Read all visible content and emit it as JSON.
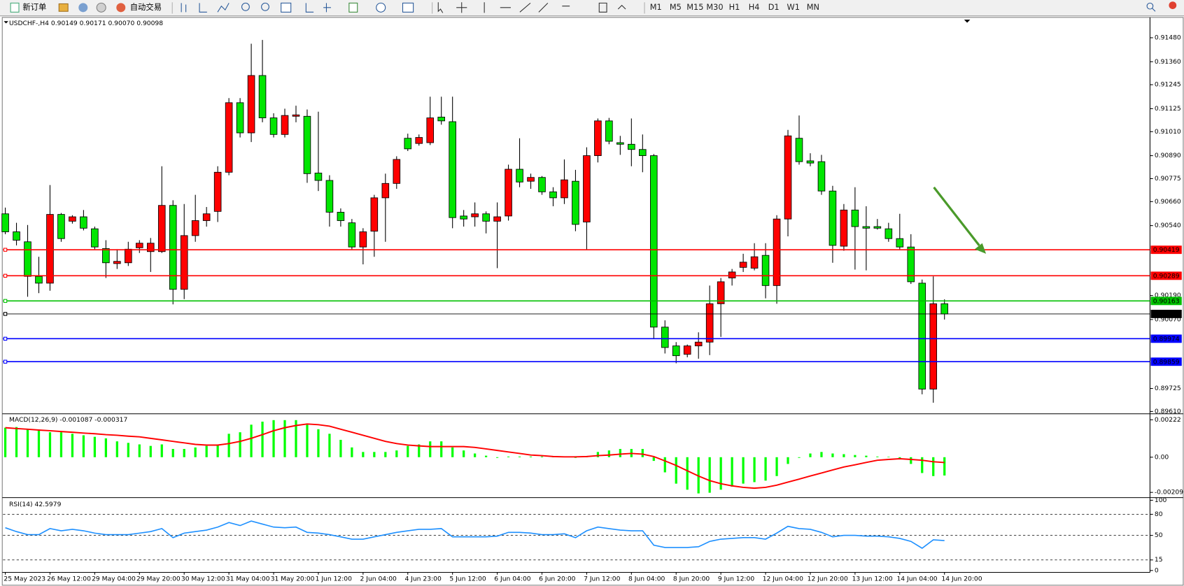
{
  "toolbar": {
    "buttons": [
      "新订单",
      "自动交易"
    ],
    "timeframes": [
      "M1",
      "M5",
      "M15",
      "M30",
      "H1",
      "H4",
      "D1",
      "W1",
      "MN"
    ]
  },
  "chart_data": [
    {
      "type": "candlestick",
      "title": "USDCHF-,H4  0.90149 0.90171 0.90070 0.90098",
      "up_color": "#ff0000",
      "down_color": "#00e600",
      "wick_color": "#000000",
      "grid": false,
      "ylim": [
        0.89602,
        0.91578
      ],
      "yticks": [
        {
          "value": 0.9148,
          "label": "0.91480"
        },
        {
          "value": 0.9136,
          "label": "0.91360"
        },
        0.91245,
        0.91125,
        {
          "value": 0.9101,
          "label": "0.91010"
        },
        {
          "value": 0.9089,
          "label": "0.90890"
        },
        0.90775,
        {
          "value": 0.9066,
          "label": "0.90660"
        },
        {
          "value": 0.9054,
          "label": "0.90540"
        },
        {
          "value": 0.9019,
          "label": "0.90190"
        },
        {
          "value": 0.9007,
          "label": "0.90070"
        },
        0.89725,
        {
          "value": 0.8961,
          "label": "0.89610"
        }
      ],
      "hlines": [
        {
          "value": 0.90419,
          "color": "#ff0000"
        },
        {
          "value": 0.90289,
          "color": "#ff0000"
        },
        {
          "value": 0.90163,
          "color": "#00c000"
        },
        {
          "value": 0.90098,
          "color": "#000000"
        },
        {
          "value": 0.89974,
          "color": "#0000ff"
        },
        {
          "value": 0.89859,
          "color": "#0000ff"
        }
      ],
      "categories": [
        "25 May 2023",
        null,
        null,
        null,
        "26 May 12:00",
        null,
        null,
        null,
        "29 May 04:00",
        null,
        null,
        null,
        "29 May 20:00",
        null,
        null,
        null,
        "30 May 12:00",
        null,
        null,
        null,
        "31 May 04:00",
        null,
        null,
        null,
        "31 May 20:00",
        null,
        null,
        null,
        "1 Jun 12:00",
        null,
        null,
        null,
        "2 Jun 04:00",
        null,
        null,
        null,
        "4 Jun 23:00",
        null,
        null,
        null,
        "5 Jun 12:00",
        null,
        null,
        null,
        "6 Jun 04:00",
        null,
        null,
        null,
        "6 Jun 20:00",
        null,
        null,
        null,
        "7 Jun 12:00",
        null,
        null,
        null,
        "8 Jun 04:00",
        null,
        null,
        null,
        "8 Jun 20:00",
        null,
        null,
        null,
        "9 Jun 12:00",
        null,
        null,
        null,
        "12 Jun 04:00",
        null,
        null,
        null,
        "12 Jun 20:00",
        null,
        null,
        null,
        "13 Jun 12:00",
        null,
        null,
        null,
        "14 Jun 04:00",
        null,
        null,
        null,
        "14 Jun 20:00"
      ],
      "open": [
        0.90599,
        0.90509,
        0.90459,
        0.90286,
        0.90252,
        0.90596,
        0.90562,
        0.90584,
        0.90524,
        0.90425,
        0.9035,
        0.90354,
        0.90429,
        0.9041,
        0.9041,
        0.90641,
        0.90221,
        0.9049,
        0.90565,
        0.90611,
        0.90807,
        0.91155,
        0.91004,
        0.91291,
        0.91079,
        0.90996,
        0.91087,
        0.91087,
        0.90803,
        0.90766,
        0.90607,
        0.90554,
        0.90433,
        0.90512,
        0.90679,
        0.90751,
        0.90977,
        0.90951,
        0.90955,
        0.91083,
        0.9106,
        0.90588,
        0.90584,
        0.90599,
        0.90562,
        0.90588,
        0.90822,
        0.90762,
        0.90781,
        0.90709,
        0.90679,
        0.90762,
        0.90558,
        0.9089,
        0.91064,
        0.90955,
        0.90947,
        0.90921,
        0.9089,
        0.90032,
        0.89938,
        0.89896,
        0.89938,
        0.89957,
        0.90149,
        0.90278,
        0.90331,
        0.90327,
        0.90391,
        0.9024,
        0.90573,
        0.90977,
        0.90864,
        0.9086,
        0.90713,
        0.90437,
        0.90618,
        0.90535,
        0.90535,
        0.90524,
        0.90475,
        0.90433,
        0.90252,
        0.89722,
        0.90149
      ],
      "high": [
        0.9063,
        0.90554,
        0.90543,
        0.90384,
        0.90743,
        0.90603,
        0.90592,
        0.90618,
        0.90535,
        0.90467,
        0.90422,
        0.90459,
        0.90467,
        0.90478,
        0.90837,
        0.90667,
        0.90648,
        0.90694,
        0.90633,
        0.90837,
        0.91178,
        0.91178,
        0.9145,
        0.91469,
        0.91102,
        0.91125,
        0.9114,
        0.91121,
        0.9111,
        0.90792,
        0.90626,
        0.90573,
        0.90527,
        0.90694,
        0.908,
        0.90887,
        0.91,
        0.90996,
        0.91185,
        0.91185,
        0.91185,
        0.90618,
        0.90656,
        0.90611,
        0.90656,
        0.90845,
        0.90977,
        0.908,
        0.90788,
        0.90732,
        0.90871,
        0.90819,
        0.90932,
        0.91076,
        0.91079,
        0.90989,
        0.91076,
        0.90996,
        0.90898,
        0.90066,
        0.89957,
        0.89945,
        0.90006,
        0.9024,
        0.90278,
        0.90323,
        0.90399,
        0.90452,
        0.90452,
        0.90592,
        0.91019,
        0.91091,
        0.90902,
        0.90894,
        0.90739,
        0.90648,
        0.90732,
        0.90637,
        0.90573,
        0.90554,
        0.90599,
        0.90497,
        0.9027,
        0.90286,
        0.90171
      ],
      "low": [
        0.90497,
        0.90441,
        0.90184,
        0.90202,
        0.90214,
        0.90459,
        0.9055,
        0.90516,
        0.90422,
        0.90278,
        0.90323,
        0.90338,
        0.90403,
        0.90308,
        0.90403,
        0.90146,
        0.90172,
        0.90459,
        0.90535,
        0.90558,
        0.90792,
        0.90981,
        0.90958,
        0.91057,
        0.90981,
        0.90981,
        0.91057,
        0.90754,
        0.90713,
        0.90535,
        0.90535,
        0.90422,
        0.90346,
        0.90384,
        0.90459,
        0.90724,
        0.90913,
        0.9094,
        0.90943,
        0.91045,
        0.90527,
        0.90535,
        0.90535,
        0.90501,
        0.90327,
        0.90565,
        0.90732,
        0.90724,
        0.90694,
        0.90637,
        0.90648,
        0.90512,
        0.90422,
        0.90856,
        0.90947,
        0.90894,
        0.90837,
        0.90807,
        0.89976,
        0.899,
        0.89851,
        0.89881,
        0.89874,
        0.89892,
        0.89983,
        0.9024,
        0.90308,
        0.90316,
        0.90176,
        0.90149,
        0.90486,
        0.90845,
        0.90837,
        0.90694,
        0.90354,
        0.90414,
        0.9032,
        0.90316,
        0.9052,
        0.90459,
        0.90422,
        0.90248,
        0.89696,
        0.89654,
        0.9007
      ],
      "close": [
        0.90509,
        0.90467,
        0.90286,
        0.90252,
        0.90596,
        0.90475,
        0.90584,
        0.90527,
        0.90433,
        0.90354,
        0.90361,
        0.90422,
        0.90452,
        0.90452,
        0.90641,
        0.90221,
        0.9049,
        0.90565,
        0.90599,
        0.90807,
        0.91155,
        0.91004,
        0.91291,
        0.91079,
        0.90996,
        0.91091,
        0.91094,
        0.908,
        0.90766,
        0.90607,
        0.90565,
        0.90433,
        0.90509,
        0.90679,
        0.90751,
        0.90871,
        0.90924,
        0.90981,
        0.91079,
        0.91064,
        0.9058,
        0.90573,
        0.90599,
        0.90562,
        0.90584,
        0.90822,
        0.90758,
        0.90781,
        0.90709,
        0.90679,
        0.90769,
        0.90546,
        0.9089,
        0.91064,
        0.90962,
        0.90947,
        0.90921,
        0.9089,
        0.90032,
        0.8993,
        0.89889,
        0.89938,
        0.89957,
        0.90149,
        0.90259,
        0.90308,
        0.90357,
        0.90384,
        0.9024,
        0.90573,
        0.90989,
        0.9086,
        0.90853,
        0.90713,
        0.90441,
        0.90618,
        0.90535,
        0.90527,
        0.90527,
        0.90475,
        0.90433,
        0.90259,
        0.89722,
        0.90149,
        0.90098
      ]
    },
    {
      "type": "macd",
      "title": "MACD(12,26,9) -0.001087 -0.000317",
      "ylim": [
        -0.00231,
        0.00253
      ],
      "yticks": [
        0.00222,
        {
          "value": 0,
          "label": "0.00"
        },
        -0.00209
      ],
      "series": [
        {
          "style": "histogram",
          "color": "#00ff00",
          "values": [
            0.00175,
            0.00179,
            0.00166,
            0.00157,
            0.00148,
            0.00148,
            0.00139,
            0.0013,
            0.00121,
            0.00112,
            0.00094,
            0.00085,
            0.00076,
            0.00067,
            0.00076,
            0.00049,
            0.00049,
            0.00058,
            0.00067,
            0.00076,
            0.00139,
            0.00148,
            0.00193,
            0.00211,
            0.0022,
            0.0022,
            0.0022,
            0.00193,
            0.00166,
            0.00139,
            0.00103,
            0.00058,
            0.00031,
            0.00031,
            0.00031,
            0.0004,
            0.00067,
            0.00076,
            0.00094,
            0.00094,
            0.00058,
            0.0004,
            0.00022,
            9e-05,
            -4e-05,
            4e-05,
            4e-05,
            4e-05,
            4e-05,
            4e-05,
            2e-05,
            -4e-05,
            4e-05,
            0.00031,
            0.0004,
            0.00049,
            0.00049,
            0.00049,
            -0.00022,
            -0.0009,
            -0.00157,
            -0.00193,
            -0.00215,
            -0.00211,
            -0.00193,
            -0.00175,
            -0.00157,
            -0.00148,
            -0.00139,
            -0.00112,
            -0.0004,
            -4e-05,
            0.00022,
            0.00031,
            0.00022,
            0.00018,
            0.00013,
            9e-05,
            4e-05,
            2e-05,
            -9e-05,
            -0.0004,
            -0.00094,
            -0.00112,
            -0.001087
          ]
        },
        {
          "style": "line",
          "color": "#ff0000",
          "values": [
            0.00175,
            0.0017,
            0.00166,
            0.00161,
            0.00157,
            0.00152,
            0.00148,
            0.00143,
            0.00139,
            0.00134,
            0.0013,
            0.00125,
            0.00121,
            0.00112,
            0.00103,
            0.00094,
            0.00085,
            0.00076,
            0.00072,
            0.00072,
            0.00081,
            0.00094,
            0.00112,
            0.00134,
            0.00157,
            0.00175,
            0.00188,
            0.00197,
            0.00193,
            0.00184,
            0.00166,
            0.00148,
            0.0013,
            0.00112,
            0.00094,
            0.00081,
            0.00072,
            0.00067,
            0.00063,
            0.00063,
            0.00063,
            0.00063,
            0.00058,
            0.00049,
            0.0004,
            0.00031,
            0.00022,
            0.00013,
            9e-05,
            4e-05,
            2e-05,
            2e-05,
            4e-05,
            9e-05,
            0.00013,
            0.00018,
            0.00022,
            0.00018,
            4e-05,
            -0.00022,
            -0.00049,
            -0.00081,
            -0.00112,
            -0.00139,
            -0.00157,
            -0.0017,
            -0.00179,
            -0.00184,
            -0.00179,
            -0.00166,
            -0.00148,
            -0.0013,
            -0.00112,
            -0.00094,
            -0.00076,
            -0.00058,
            -0.00045,
            -0.00031,
            -0.00018,
            -0.00013,
            -9e-05,
            -0.00013,
            -0.00018,
            -0.00027,
            -0.000317
          ]
        }
      ]
    },
    {
      "type": "line",
      "title": "RSI(14) 42.5979",
      "color": "#1e90ff",
      "ylim": [
        -2.7,
        101.6
      ],
      "yticks": [
        100,
        80,
        50,
        15,
        0
      ],
      "levels": [
        80,
        50,
        15
      ],
      "values": [
        60.8,
        55.4,
        51.1,
        51.1,
        59.7,
        56.5,
        58.6,
        56.5,
        53.2,
        51.1,
        51.1,
        51.1,
        53.2,
        55.4,
        59.7,
        46.8,
        53.2,
        55.4,
        57.5,
        61.8,
        68.3,
        64.0,
        70.4,
        66.1,
        61.8,
        60.8,
        61.8,
        54.3,
        53.2,
        51.1,
        47.9,
        44.6,
        44.6,
        47.9,
        51.1,
        54.3,
        56.5,
        58.6,
        58.6,
        59.7,
        47.9,
        47.9,
        47.9,
        47.9,
        48.9,
        54.3,
        54.3,
        53.2,
        51.1,
        51.1,
        52.2,
        46.8,
        56.5,
        61.8,
        59.7,
        57.5,
        56.5,
        56.5,
        36.0,
        32.8,
        32.8,
        32.8,
        33.9,
        41.4,
        44.6,
        45.7,
        46.8,
        46.8,
        44.6,
        53.2,
        62.9,
        59.7,
        58.6,
        54.3,
        47.9,
        50,
        50,
        48.9,
        48.9,
        47.9,
        45.7,
        41.4,
        31.7,
        43.6,
        42.5979
      ]
    }
  ]
}
